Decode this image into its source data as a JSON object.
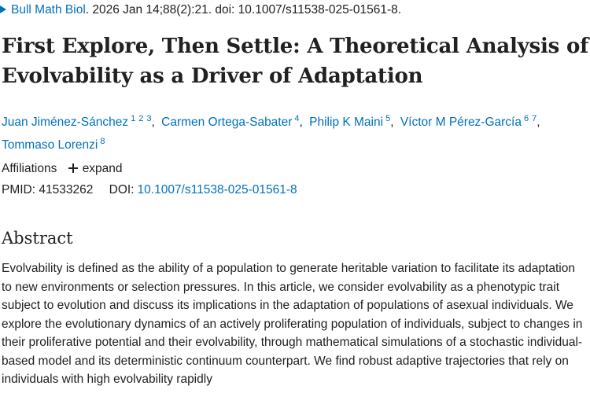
{
  "citation": {
    "journal": "Bull Math Biol",
    "details": ". 2026 Jan 14;88(2):21. doi: 10.1007/s11538-025-01561-8."
  },
  "article": {
    "title": "First Explore, Then Settle: A Theoretical Analysis of Evolvability as a Driver of Adaptation"
  },
  "authors": [
    {
      "name": "Juan Jiménez-Sánchez",
      "affiliations": [
        "1",
        "2",
        "3"
      ]
    },
    {
      "name": "Carmen Ortega-Sabater",
      "affiliations": [
        "4"
      ]
    },
    {
      "name": "Philip K Maini",
      "affiliations": [
        "5"
      ]
    },
    {
      "name": "Víctor M Pérez-García",
      "affiliations": [
        "6",
        "7"
      ]
    },
    {
      "name": "Tommaso Lorenzi",
      "affiliations": [
        "8"
      ]
    }
  ],
  "affiliations_section": {
    "label": "Affiliations",
    "expand_label": "expand"
  },
  "identifiers": {
    "pmid_label": "PMID:",
    "pmid": "41533262",
    "doi_label": "DOI:",
    "doi": "10.1007/s11538-025-01561-8"
  },
  "abstract": {
    "heading": "Abstract",
    "text": "Evolvability is defined as the ability of a population to generate heritable variation to facilitate its adaptation to new environments or selection pressures. In this article, we consider evolvability as a phenotypic trait subject to evolution and discuss its implications in the adaptation of populations of asexual individuals. We explore the evolutionary dynamics of an actively proliferating population of individuals, subject to changes in their proliferative potential and their evolvability, through mathematical simulations of a stochastic individual-based model and its deterministic continuum counterpart. We find robust adaptive trajectories that rely on individuals with high evolvability rapidly"
  },
  "colors": {
    "link": "#0071bc",
    "text": "#212121",
    "background": "#ffffff"
  },
  "icons": {
    "journal": "triangle-right-icon",
    "expand": "plus-icon"
  }
}
